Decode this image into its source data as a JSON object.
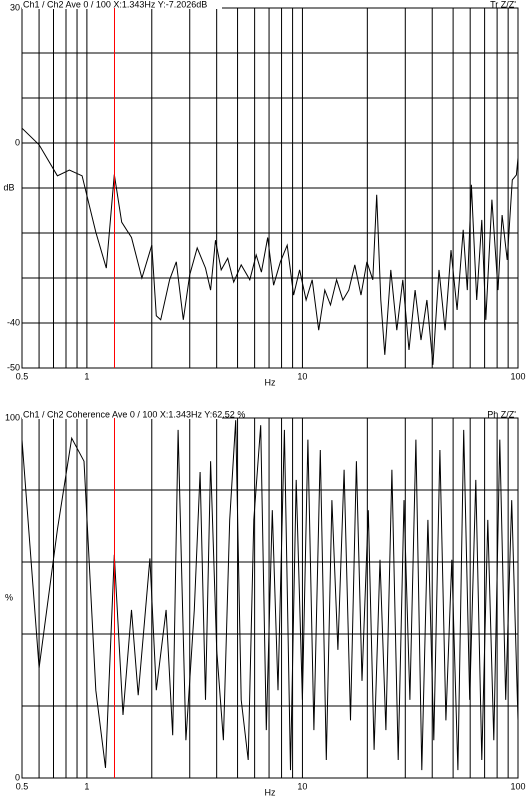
{
  "chart_data": [
    {
      "type": "line",
      "title": "Ch1 / Ch2  Ave 0 / 100  X:1.343Hz  Y:-7.2026dB",
      "title_right": "Tr Z/Z'",
      "xlabel": "Hz",
      "ylabel": "dB",
      "log_x": true,
      "grid": true,
      "xlim": [
        0.5,
        100
      ],
      "xticks": [
        0.5,
        1,
        10,
        100
      ],
      "minor_xticks": [
        0.6,
        0.7,
        0.8,
        0.9,
        2,
        3,
        4,
        5,
        6,
        7,
        8,
        9,
        20,
        30,
        40,
        50,
        60,
        70,
        80,
        90
      ],
      "ylim": [
        -50,
        30
      ],
      "yticks": [
        30,
        0,
        -40,
        -50
      ],
      "minor_yticks": [
        20,
        10,
        -10,
        -20,
        -30
      ],
      "cursor_x": 1.343,
      "cursor_color": "#ff0000",
      "x": [
        0.5,
        0.6,
        0.73,
        0.83,
        0.95,
        1.1,
        1.23,
        1.34,
        1.45,
        1.61,
        1.8,
        2.0,
        2.1,
        2.2,
        2.42,
        2.6,
        2.8,
        3.0,
        3.25,
        3.55,
        3.75,
        3.95,
        4.2,
        4.5,
        4.8,
        5.2,
        5.7,
        6.1,
        6.45,
        6.9,
        7.35,
        7.9,
        8.5,
        9.1,
        9.7,
        10.4,
        11.1,
        11.9,
        12.7,
        13.5,
        14.4,
        15.4,
        16.4,
        17.5,
        18.7,
        19.9,
        21.2,
        22.1,
        23.1,
        24.1,
        25.7,
        27.4,
        29.2,
        31.2,
        33.3,
        35.5,
        37.8,
        40.3,
        43,
        45.9,
        48.9,
        52.2,
        55.7,
        58.2,
        60.8,
        64.3,
        67.9,
        70.9,
        75.7,
        80.8,
        84.4,
        89.1,
        94.1,
        98.3,
        100
      ],
      "series": [
        {
          "color": "#000000",
          "values": [
            3.3,
            -0.4,
            -7.3,
            -6,
            -7.3,
            -19.8,
            -27.8,
            -7,
            -17.6,
            -21,
            -30,
            -22.7,
            -38.4,
            -39.3,
            -30.4,
            -26.4,
            -39.3,
            -29.3,
            -23.3,
            -27.8,
            -32.7,
            -21.6,
            -28.2,
            -25.6,
            -30.9,
            -27.1,
            -30.4,
            -24.9,
            -28.7,
            -21,
            -31.6,
            -26.4,
            -22.7,
            -33.8,
            -28.2,
            -34.9,
            -30.4,
            -41.6,
            -32.7,
            -36,
            -30.4,
            -34.9,
            -32.7,
            -27.1,
            -33.8,
            -26.4,
            -30.4,
            -11.5,
            -34.9,
            -47.1,
            -28.2,
            -41.6,
            -30.4,
            -46,
            -32.7,
            -43.8,
            -34.9,
            -49.3,
            -28.2,
            -41.6,
            -23.8,
            -37.1,
            -19.3,
            -32.7,
            -9.3,
            -34.9,
            -17.1,
            -39.3,
            -12.6,
            -32.7,
            -16,
            -26,
            -8.2,
            -7.1,
            -3.3
          ]
        }
      ]
    },
    {
      "type": "line",
      "title": "Ch1 / Ch2  Coherence Ave 0 / 100  X:1.343Hz  Y:62.52 %",
      "title_right": "Ph Z/Z'",
      "xlabel": "Hz",
      "ylabel": "%",
      "log_x": true,
      "grid": true,
      "xlim": [
        0.5,
        100
      ],
      "xticks": [
        0.5,
        1,
        10,
        100
      ],
      "minor_xticks": [
        0.6,
        0.7,
        0.8,
        0.9,
        2,
        3,
        4,
        5,
        6,
        7,
        8,
        9,
        20,
        30,
        40,
        50,
        60,
        70,
        80,
        90
      ],
      "ylim": [
        0,
        100
      ],
      "yticks": [
        100,
        0
      ],
      "minor_yticks": [
        80,
        60,
        40,
        20
      ],
      "cursor_x": 1.343,
      "cursor_color": "#ff0000",
      "x": [
        0.5,
        0.6,
        0.73,
        0.85,
        0.97,
        1.1,
        1.22,
        1.34,
        1.47,
        1.61,
        1.73,
        1.96,
        2.1,
        2.33,
        2.5,
        2.65,
        2.88,
        3.15,
        3.35,
        3.55,
        3.75,
        4.0,
        4.3,
        4.6,
        4.9,
        5.2,
        5.6,
        5.95,
        6.4,
        6.8,
        7.25,
        7.7,
        8.25,
        8.8,
        9.35,
        10,
        10.6,
        11.3,
        12.1,
        12.9,
        13.7,
        14.6,
        15.6,
        16.7,
        17.8,
        18.9,
        20.2,
        21.5,
        22.9,
        24.4,
        26,
        27.8,
        29.6,
        31.5,
        33.6,
        35.8,
        38.2,
        40.7,
        43.4,
        46.3,
        49.3,
        52.6,
        56,
        59.7,
        63.7,
        67.9,
        72.4,
        77.2,
        82.3,
        87.7,
        93.5,
        100
      ],
      "series": [
        {
          "color": "#000000",
          "values": [
            94,
            30.6,
            69,
            94.4,
            88,
            24.4,
            2.8,
            62,
            17.5,
            46.7,
            23,
            61,
            24.4,
            46.7,
            11.9,
            96.7,
            10.5,
            46.7,
            85,
            21.7,
            88,
            35.6,
            10.5,
            71.7,
            99.4,
            21.7,
            5,
            71.7,
            98,
            13.3,
            74.4,
            24.4,
            96.7,
            2.2,
            82.8,
            21.7,
            94,
            13.3,
            91.1,
            5,
            77.2,
            35.6,
            85.6,
            16,
            88,
            27,
            74.4,
            7.8,
            60.6,
            13.3,
            85.6,
            5,
            77.2,
            21.7,
            94,
            2.2,
            71.7,
            10.5,
            91.1,
            16,
            60.6,
            2.2,
            96.7,
            21.7,
            82.8,
            5,
            71.7,
            10.5,
            94,
            21.7,
            77.2,
            16
          ]
        }
      ]
    }
  ]
}
